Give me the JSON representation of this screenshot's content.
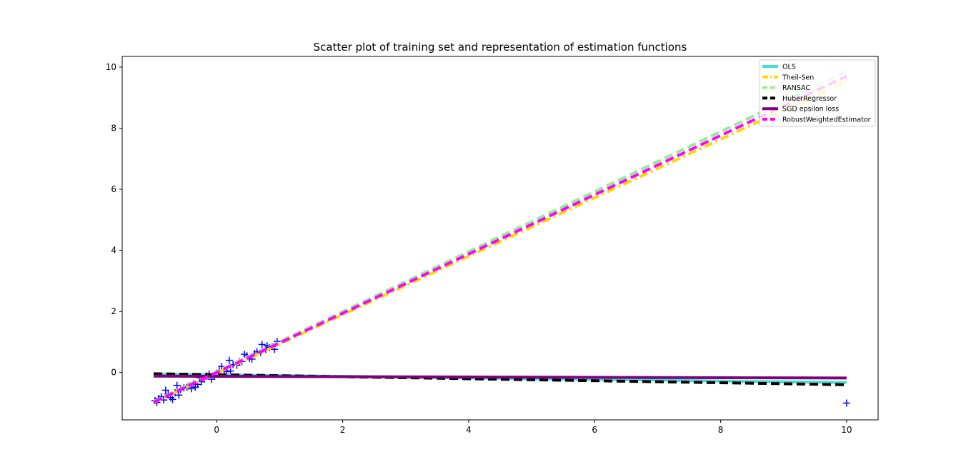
{
  "chart_data": {
    "type": "scatter",
    "title": "Scatter plot of training set and representation of estimation functions",
    "xlabel": "",
    "ylabel": "",
    "xlim": [
      -1.5,
      10.5
    ],
    "ylim": [
      -1.55,
      10.35
    ],
    "grid": false,
    "legend_position": "top-right",
    "x_ticks": [
      0,
      2,
      4,
      6,
      8,
      10
    ],
    "y_ticks": [
      0,
      2,
      4,
      6,
      8,
      10
    ],
    "scatter": {
      "color": "#0000ff",
      "marker": "+",
      "points": [
        [
          -0.98,
          -0.92
        ],
        [
          -0.95,
          -0.98
        ],
        [
          -0.92,
          -0.85
        ],
        [
          -0.88,
          -0.79
        ],
        [
          -0.84,
          -0.9
        ],
        [
          -0.81,
          -0.58
        ],
        [
          -0.77,
          -0.7
        ],
        [
          -0.73,
          -0.82
        ],
        [
          -0.7,
          -0.88
        ],
        [
          -0.66,
          -0.66
        ],
        [
          -0.63,
          -0.42
        ],
        [
          -0.6,
          -0.74
        ],
        [
          -0.57,
          -0.55
        ],
        [
          -0.52,
          -0.5
        ],
        [
          -0.47,
          -0.48
        ],
        [
          -0.44,
          -0.44
        ],
        [
          -0.4,
          -0.53
        ],
        [
          -0.37,
          -0.37
        ],
        [
          -0.34,
          -0.48
        ],
        [
          -0.3,
          -0.39
        ],
        [
          -0.27,
          -0.17
        ],
        [
          -0.24,
          -0.3
        ],
        [
          -0.2,
          -0.22
        ],
        [
          -0.16,
          -0.11
        ],
        [
          -0.12,
          -0.05
        ],
        [
          -0.08,
          -0.22
        ],
        [
          -0.04,
          -0.12
        ],
        [
          0.0,
          -0.02
        ],
        [
          0.04,
          0.06
        ],
        [
          0.08,
          0.2
        ],
        [
          0.12,
          0.08
        ],
        [
          0.16,
          0.03
        ],
        [
          0.2,
          0.4
        ],
        [
          0.22,
          0.05
        ],
        [
          0.26,
          0.26
        ],
        [
          0.32,
          0.24
        ],
        [
          0.36,
          0.35
        ],
        [
          0.4,
          0.36
        ],
        [
          0.44,
          0.6
        ],
        [
          0.48,
          0.55
        ],
        [
          0.52,
          0.46
        ],
        [
          0.56,
          0.44
        ],
        [
          0.6,
          0.62
        ],
        [
          0.64,
          0.68
        ],
        [
          0.7,
          0.66
        ],
        [
          0.72,
          0.92
        ],
        [
          0.78,
          0.76
        ],
        [
          0.8,
          0.88
        ],
        [
          0.84,
          0.82
        ],
        [
          0.88,
          0.85
        ],
        [
          0.92,
          0.76
        ],
        [
          0.96,
          1.02
        ],
        [
          10.0,
          -1.0
        ]
      ]
    },
    "series": [
      {
        "name": "OLS",
        "color": "#40e0d0",
        "dash": "solid",
        "x": [
          -1.0,
          10.0
        ],
        "y": [
          -0.05,
          -0.33
        ]
      },
      {
        "name": "Theil-Sen",
        "color": "#ffd700",
        "dash": "dashdot",
        "x": [
          -1.0,
          10.0
        ],
        "y": [
          -0.98,
          9.55
        ]
      },
      {
        "name": "RANSAC",
        "color": "#90ee90",
        "dash": "dashed",
        "x": [
          -1.0,
          10.0
        ],
        "y": [
          -0.95,
          9.85
        ]
      },
      {
        "name": "HuberRegressor",
        "color": "#000000",
        "dash": "dashed",
        "x": [
          -1.0,
          10.0
        ],
        "y": [
          -0.04,
          -0.4
        ]
      },
      {
        "name": "SGD epsilon loss",
        "color": "#800080",
        "dash": "solid",
        "x": [
          -1.0,
          10.0
        ],
        "y": [
          -0.12,
          -0.18
        ]
      },
      {
        "name": "RobustWeightedEstimator",
        "color": "#ff00ff",
        "dash": "dashed",
        "x": [
          -1.0,
          10.0
        ],
        "y": [
          -0.97,
          9.7
        ]
      }
    ]
  }
}
